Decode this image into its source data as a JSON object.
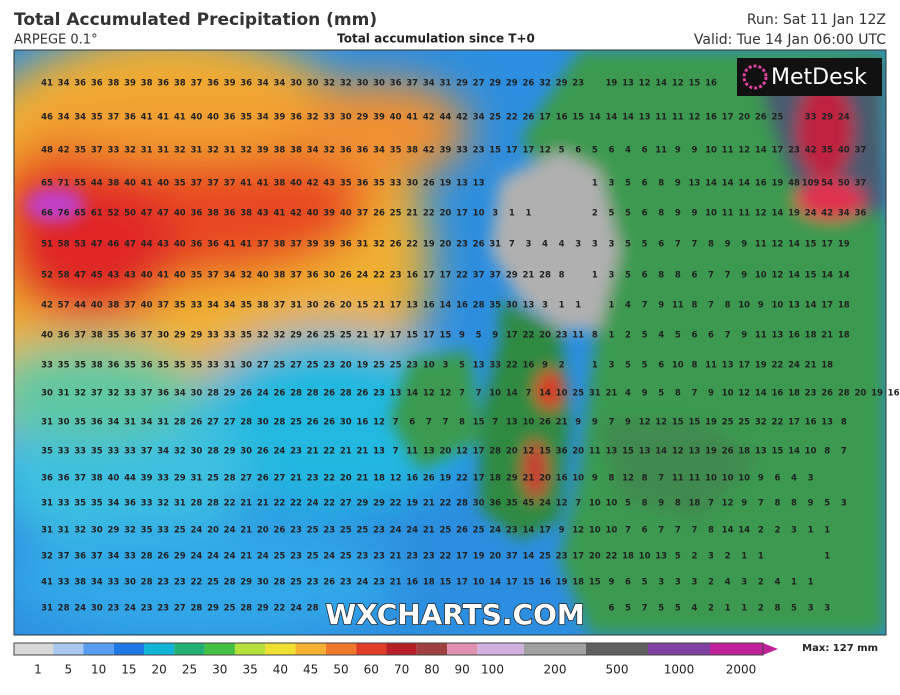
{
  "header": {
    "title": "Total Accumulated Precipitation (mm)",
    "model": "ARPEGE 0.1°",
    "subtitle": "Total accumulation since T+0",
    "run": "Run: Sat 11 Jan 12Z",
    "valid": "Valid: Tue 14 Jan 06:00 UTC"
  },
  "logo": "MetDesk",
  "watermark": "WXCHARTS.COM",
  "grid_values": [
    [
      41,
      34,
      36,
      36,
      38,
      39,
      38,
      36,
      38,
      37,
      36,
      39,
      36,
      34,
      34,
      30,
      30,
      32,
      32,
      30,
      30,
      36,
      37,
      34,
      31,
      29,
      27,
      29,
      29,
      26,
      32,
      29,
      23,
      null,
      19,
      13,
      12,
      14,
      12,
      15,
      16
    ],
    [
      46,
      34,
      34,
      35,
      37,
      36,
      41,
      41,
      41,
      40,
      40,
      36,
      35,
      34,
      39,
      36,
      32,
      33,
      30,
      29,
      39,
      40,
      41,
      42,
      44,
      42,
      34,
      25,
      22,
      26,
      17,
      16,
      15,
      14,
      14,
      14,
      13,
      11,
      11,
      12,
      16,
      17,
      20,
      26,
      25,
      null,
      33,
      29,
      24
    ],
    [
      48,
      42,
      35,
      37,
      33,
      32,
      31,
      31,
      32,
      31,
      32,
      31,
      32,
      39,
      38,
      38,
      34,
      32,
      36,
      36,
      34,
      35,
      38,
      42,
      39,
      33,
      23,
      15,
      17,
      17,
      12,
      5,
      6,
      5,
      6,
      4,
      6,
      11,
      9,
      9,
      10,
      11,
      12,
      14,
      17,
      23,
      42,
      35,
      40,
      37
    ],
    [
      65,
      71,
      55,
      44,
      38,
      40,
      41,
      40,
      35,
      37,
      37,
      37,
      41,
      41,
      38,
      40,
      42,
      43,
      35,
      36,
      35,
      33,
      30,
      26,
      19,
      13,
      13,
      null,
      null,
      null,
      null,
      null,
      null,
      1,
      3,
      5,
      6,
      8,
      9,
      13,
      14,
      14,
      14,
      16,
      19,
      48,
      109,
      54,
      50,
      37
    ],
    [
      66,
      76,
      65,
      61,
      52,
      50,
      47,
      47,
      40,
      36,
      38,
      36,
      38,
      43,
      41,
      42,
      40,
      39,
      40,
      37,
      26,
      25,
      21,
      22,
      20,
      17,
      10,
      3,
      1,
      1,
      null,
      null,
      null,
      2,
      5,
      5,
      6,
      8,
      9,
      9,
      10,
      11,
      11,
      12,
      14,
      19,
      24,
      42,
      34,
      36
    ],
    [
      51,
      58,
      53,
      47,
      46,
      47,
      44,
      43,
      40,
      36,
      36,
      41,
      41,
      37,
      38,
      37,
      39,
      39,
      36,
      31,
      32,
      26,
      22,
      19,
      20,
      23,
      26,
      31,
      7,
      3,
      4,
      4,
      3,
      3,
      3,
      5,
      5,
      6,
      7,
      7,
      8,
      9,
      9,
      11,
      12,
      14,
      15,
      17,
      19
    ],
    [
      52,
      58,
      47,
      45,
      43,
      43,
      40,
      41,
      40,
      35,
      37,
      34,
      32,
      40,
      38,
      37,
      36,
      30,
      26,
      24,
      22,
      23,
      16,
      17,
      17,
      22,
      37,
      37,
      29,
      21,
      28,
      8,
      null,
      1,
      3,
      5,
      6,
      8,
      8,
      6,
      7,
      7,
      9,
      10,
      12,
      14,
      15,
      14,
      14
    ],
    [
      42,
      57,
      44,
      40,
      38,
      37,
      40,
      37,
      35,
      33,
      34,
      34,
      35,
      38,
      37,
      31,
      30,
      26,
      20,
      15,
      21,
      17,
      13,
      16,
      14,
      16,
      28,
      35,
      30,
      13,
      3,
      1,
      1,
      null,
      1,
      4,
      7,
      9,
      11,
      8,
      7,
      8,
      10,
      9,
      10,
      13,
      14,
      17,
      18
    ],
    [
      40,
      36,
      37,
      38,
      35,
      36,
      37,
      30,
      29,
      29,
      33,
      33,
      35,
      32,
      32,
      29,
      26,
      25,
      25,
      21,
      17,
      17,
      15,
      17,
      15,
      9,
      5,
      9,
      17,
      22,
      20,
      23,
      11,
      8,
      1,
      2,
      5,
      4,
      5,
      6,
      6,
      7,
      9,
      11,
      13,
      16,
      18,
      21,
      18
    ],
    [
      33,
      35,
      35,
      38,
      36,
      35,
      36,
      35,
      35,
      35,
      33,
      31,
      30,
      27,
      25,
      27,
      25,
      23,
      20,
      19,
      25,
      25,
      23,
      10,
      3,
      5,
      13,
      33,
      22,
      16,
      9,
      2,
      null,
      1,
      3,
      5,
      5,
      6,
      10,
      8,
      11,
      13,
      17,
      19,
      22,
      24,
      21,
      18
    ],
    [
      30,
      31,
      32,
      37,
      32,
      33,
      37,
      36,
      34,
      30,
      28,
      29,
      26,
      24,
      26,
      28,
      28,
      26,
      28,
      26,
      23,
      13,
      14,
      12,
      12,
      7,
      7,
      10,
      14,
      7,
      14,
      10,
      25,
      31,
      21,
      4,
      9,
      5,
      8,
      7,
      9,
      10,
      12,
      14,
      16,
      18,
      23,
      26,
      28,
      20,
      19,
      16
    ],
    [
      31,
      30,
      35,
      36,
      34,
      31,
      34,
      31,
      28,
      26,
      27,
      27,
      28,
      30,
      28,
      25,
      26,
      26,
      30,
      16,
      12,
      7,
      6,
      7,
      7,
      8,
      15,
      7,
      13,
      10,
      26,
      21,
      9,
      9,
      7,
      9,
      12,
      12,
      15,
      15,
      19,
      25,
      25,
      32,
      22,
      17,
      16,
      13,
      8
    ],
    [
      35,
      33,
      33,
      35,
      33,
      33,
      37,
      34,
      32,
      30,
      28,
      29,
      30,
      26,
      24,
      23,
      21,
      22,
      21,
      21,
      13,
      7,
      11,
      13,
      20,
      12,
      17,
      28,
      20,
      12,
      15,
      36,
      20,
      11,
      13,
      15,
      13,
      14,
      12,
      13,
      19,
      26,
      18,
      13,
      15,
      14,
      10,
      8,
      7
    ],
    [
      36,
      36,
      37,
      38,
      40,
      44,
      39,
      33,
      29,
      31,
      25,
      28,
      27,
      26,
      27,
      21,
      23,
      22,
      20,
      21,
      18,
      12,
      16,
      26,
      19,
      22,
      17,
      18,
      29,
      21,
      20,
      16,
      10,
      9,
      8,
      12,
      8,
      7,
      11,
      11,
      10,
      10,
      10,
      9,
      6,
      4,
      3
    ],
    [
      31,
      33,
      35,
      35,
      34,
      36,
      33,
      32,
      31,
      28,
      28,
      22,
      21,
      21,
      22,
      22,
      24,
      22,
      27,
      29,
      29,
      22,
      19,
      21,
      22,
      28,
      30,
      36,
      35,
      45,
      24,
      12,
      7,
      10,
      10,
      5,
      8,
      9,
      8,
      18,
      7,
      12,
      9,
      7,
      8,
      8,
      9,
      5,
      3
    ],
    [
      31,
      31,
      32,
      30,
      29,
      32,
      35,
      33,
      25,
      24,
      20,
      24,
      21,
      20,
      26,
      23,
      25,
      23,
      25,
      25,
      23,
      24,
      24,
      21,
      25,
      26,
      25,
      24,
      23,
      14,
      17,
      9,
      12,
      10,
      10,
      7,
      6,
      7,
      7,
      7,
      8,
      14,
      14,
      2,
      2,
      3,
      1,
      1
    ],
    [
      32,
      37,
      36,
      37,
      34,
      33,
      28,
      26,
      29,
      24,
      24,
      24,
      21,
      24,
      25,
      23,
      25,
      24,
      25,
      23,
      23,
      21,
      23,
      23,
      22,
      17,
      19,
      20,
      37,
      14,
      25,
      23,
      17,
      20,
      22,
      18,
      10,
      13,
      5,
      2,
      3,
      2,
      1,
      1,
      null,
      null,
      null,
      1
    ],
    [
      41,
      33,
      38,
      34,
      33,
      30,
      28,
      23,
      23,
      22,
      25,
      28,
      29,
      30,
      28,
      25,
      23,
      26,
      23,
      24,
      23,
      21,
      16,
      18,
      15,
      17,
      10,
      14,
      17,
      15,
      16,
      19,
      18,
      15,
      9,
      6,
      5,
      3,
      3,
      3,
      2,
      4,
      3,
      2,
      4,
      1,
      1
    ],
    [
      31,
      28,
      24,
      30,
      23,
      24,
      23,
      23,
      27,
      28,
      29,
      25,
      28,
      29,
      22,
      24,
      28,
      null,
      null,
      null,
      null,
      null,
      null,
      null,
      null,
      null,
      null,
      null,
      null,
      null,
      null,
      null,
      null,
      null,
      6,
      5,
      7,
      5,
      5,
      4,
      2,
      1,
      1,
      2,
      8,
      5,
      3,
      3
    ]
  ],
  "colorbar": {
    "ticks": [
      1,
      5,
      10,
      15,
      20,
      25,
      30,
      35,
      40,
      45,
      50,
      60,
      70,
      80,
      90,
      100,
      200,
      500,
      1000,
      2000
    ],
    "colors": [
      "#d8d8d8",
      "#a8c8f0",
      "#5a9cf0",
      "#1e78e6",
      "#10b4d8",
      "#20b070",
      "#44c040",
      "#b4e03c",
      "#f0e030",
      "#f4b030",
      "#f07828",
      "#e03c28",
      "#b81e28",
      "#a04040",
      "#e090b0",
      "#d0b0e0",
      "#a0a0a0",
      "#606060",
      "#8040a0",
      "#c0209a"
    ],
    "max_label": "Max: 127 mm"
  }
}
